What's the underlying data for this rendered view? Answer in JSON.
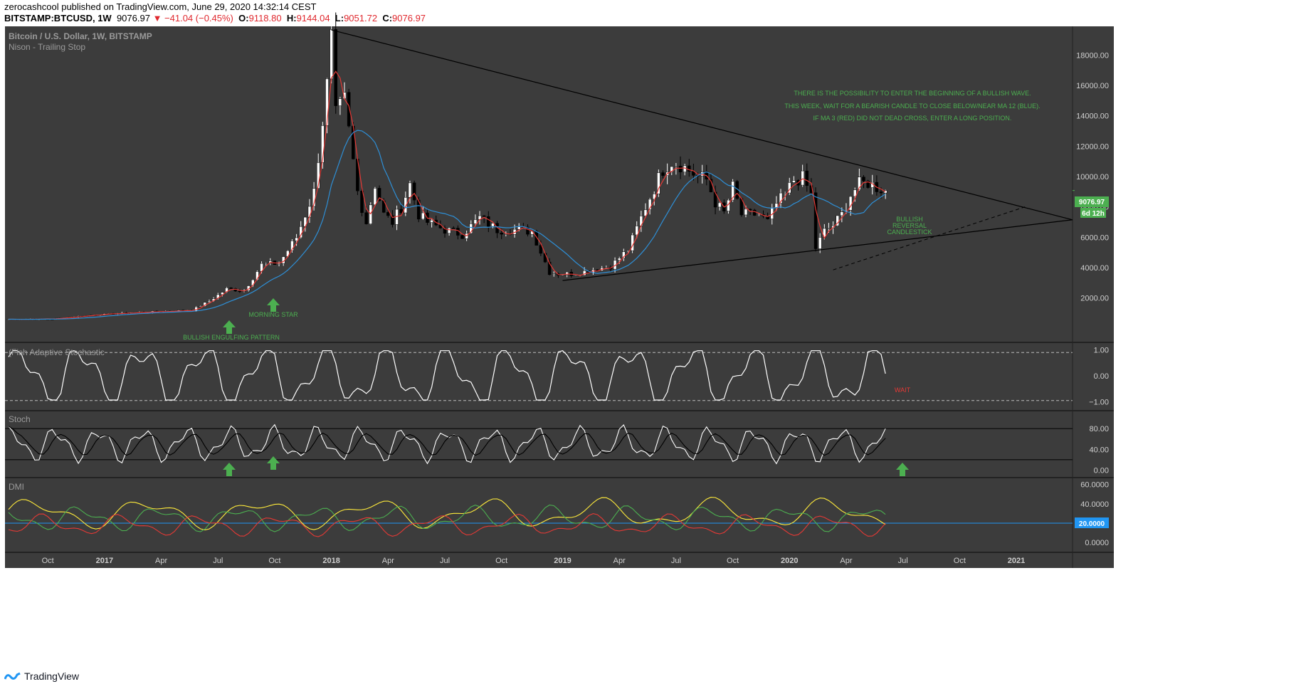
{
  "header": {
    "line1": "zerocashcool published on TradingView.com, June 29, 2020 14:32:14 CEST",
    "symbol": "BITSTAMP:BTCUSD, 1W",
    "price": "9076.97",
    "change": "▼ −41.04 (−0.45%)",
    "ohlc": [
      {
        "k": "O:",
        "v": "9118.80"
      },
      {
        "k": "H:",
        "v": "9144.04"
      },
      {
        "k": "L:",
        "v": "9051.72"
      },
      {
        "k": "C:",
        "v": "9076.97"
      }
    ]
  },
  "footer": {
    "brand": "TradingView"
  },
  "colors": {
    "background": "#3c3c3c",
    "up": "#ffffff",
    "down": "#000000",
    "ma3": "#e53935",
    "ma12": "#2e8fd6",
    "annotation": "#4caf50",
    "wait": "#e53935",
    "adx": "#ffeb3b",
    "plus_di": "#4caf50",
    "minus_di": "#e53935",
    "price_label": "#4caf50",
    "level_line": "#2196f3"
  },
  "chart_data": [
    {
      "type": "candlestick",
      "title": "Bitcoin / U.S. Dollar, 1W, BITSTAMP",
      "subtitle": "Nison - Trailing Stop",
      "x_labels": [
        "Oct",
        "2017",
        "Apr",
        "Jul",
        "Oct",
        "2018",
        "Apr",
        "Jul",
        "Oct",
        "2019",
        "Apr",
        "Jul",
        "Oct",
        "2020",
        "Apr",
        "Jul",
        "Oct",
        "2021"
      ],
      "y_ticks": [
        "18000.00",
        "16000.00",
        "14000.00",
        "12000.00",
        "10000.00",
        "8000.00",
        "6000.00",
        "4000.00",
        "2000.00"
      ],
      "ylim": [
        -500,
        19700
      ],
      "price_anchors": [
        [
          0,
          600
        ],
        [
          10,
          620
        ],
        [
          20,
          900
        ],
        [
          30,
          1050
        ],
        [
          38,
          1150
        ],
        [
          42,
          1200
        ],
        [
          46,
          1800
        ],
        [
          50,
          2600
        ],
        [
          54,
          2500
        ],
        [
          58,
          4200
        ],
        [
          62,
          4300
        ],
        [
          66,
          6000
        ],
        [
          70,
          9000
        ],
        [
          73,
          16000
        ],
        [
          74,
          19000
        ],
        [
          75,
          14000
        ],
        [
          77,
          15000
        ],
        [
          78,
          13000
        ],
        [
          80,
          9000
        ],
        [
          82,
          7000
        ],
        [
          84,
          9500
        ],
        [
          86,
          7500
        ],
        [
          88,
          7000
        ],
        [
          90,
          8000
        ],
        [
          92,
          9500
        ],
        [
          94,
          7500
        ],
        [
          96,
          7000
        ],
        [
          100,
          6500
        ],
        [
          104,
          6200
        ],
        [
          108,
          7300
        ],
        [
          112,
          6500
        ],
        [
          116,
          6500
        ],
        [
          120,
          6400
        ],
        [
          124,
          3700
        ],
        [
          126,
          3600
        ],
        [
          130,
          3600
        ],
        [
          134,
          3900
        ],
        [
          138,
          4100
        ],
        [
          142,
          5200
        ],
        [
          146,
          8000
        ],
        [
          150,
          10500
        ],
        [
          152,
          11000
        ],
        [
          154,
          10800
        ],
        [
          158,
          10000
        ],
        [
          160,
          9800
        ],
        [
          162,
          8300
        ],
        [
          164,
          7600
        ],
        [
          166,
          9300
        ],
        [
          168,
          7500
        ],
        [
          172,
          7500
        ],
        [
          174,
          7000
        ],
        [
          176,
          8200
        ],
        [
          178,
          8800
        ],
        [
          180,
          9800
        ],
        [
          182,
          9900
        ],
        [
          184,
          8800
        ],
        [
          185,
          5300
        ],
        [
          187,
          6400
        ],
        [
          189,
          6800
        ],
        [
          191,
          7500
        ],
        [
          193,
          8800
        ],
        [
          195,
          9500
        ],
        [
          197,
          9600
        ],
        [
          199,
          9300
        ],
        [
          201,
          9076.97
        ]
      ],
      "ma_lines": [
        {
          "name": "MA 3",
          "color": "#e53935"
        },
        {
          "name": "MA 12",
          "color": "#2e8fd6"
        }
      ],
      "trendlines": [
        {
          "from": [
            "2017-12 top",
            19650
          ],
          "to": [
            "2021-01",
            7150
          ],
          "style": "solid"
        },
        {
          "from": [
            "2018-12",
            3150
          ],
          "to": [
            "2021-01",
            7150
          ],
          "style": "solid"
        },
        {
          "from": [
            "2020-03",
            3850
          ],
          "to": [
            "2020-10",
            8000
          ],
          "style": "dashed"
        }
      ],
      "annotations": [
        {
          "text": "THERE IS THE POSSIBILITY TO ENTER THE BEGINNING OF A BULLISH WAVE."
        },
        {
          "text": "THIS WEEK, WAIT FOR A BEARISH CANDLE TO CLOSE BELOW/NEAR MA 12 (BLUE)."
        },
        {
          "text": "IF MA 3 (RED) DID NOT DEAD CROSS, ENTER A LONG POSITION."
        },
        {
          "text": "BULLISH ENGULFING PATTERN"
        },
        {
          "text": "MORNING STAR"
        },
        {
          "text": "BULLISH"
        },
        {
          "text": "REVERSAL"
        },
        {
          "text": "CANDLESTICK"
        }
      ],
      "last_price_label": "9076.97",
      "countdown_label": "6d 12h"
    },
    {
      "type": "line",
      "title": "(Fish Adaptive Stochastic",
      "y_ticks": [
        "1.00",
        "0.00",
        "−1.00"
      ],
      "ylim": [
        -1.15,
        1.1
      ],
      "annotation": "WAIT"
    },
    {
      "type": "line",
      "title": "Stoch",
      "y_ticks": [
        "80.00",
        "40.00",
        "0.00"
      ],
      "ylim": [
        -5,
        105
      ],
      "levels": [
        80,
        20
      ]
    },
    {
      "type": "line",
      "title": "DMI",
      "y_ticks": [
        "60.0000",
        "40.0000",
        "0.0000"
      ],
      "ylim": [
        -5,
        62
      ],
      "level_label": "20.0000",
      "series": [
        {
          "name": "",
          "color": "#ffeb3b"
        },
        {
          "name": "",
          "color": "#4caf50"
        },
        {
          "name": "",
          "color": "#e53935"
        }
      ]
    }
  ]
}
